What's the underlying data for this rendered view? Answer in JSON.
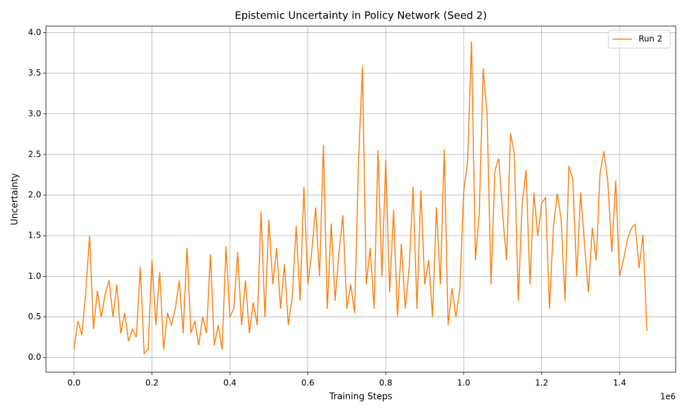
{
  "chart_data": {
    "type": "line",
    "title": "Epistemic Uncertainty in Policy Network (Seed 2)",
    "x_label": "Training Steps",
    "y_label": "Uncertainty",
    "x_offset_label": "1e6",
    "xlim": [
      -72000,
      1544000
    ],
    "ylim": [
      -0.18,
      4.08
    ],
    "xticks": [
      {
        "value": 0,
        "label": "0.0"
      },
      {
        "value": 200000,
        "label": "0.2"
      },
      {
        "value": 400000,
        "label": "0.4"
      },
      {
        "value": 600000,
        "label": "0.6"
      },
      {
        "value": 800000,
        "label": "0.8"
      },
      {
        "value": 1000000,
        "label": "1.0"
      },
      {
        "value": 1200000,
        "label": "1.2"
      },
      {
        "value": 1400000,
        "label": "1.4"
      }
    ],
    "yticks": [
      {
        "value": 0,
        "label": "0.0"
      },
      {
        "value": 0.5,
        "label": "0.5"
      },
      {
        "value": 1,
        "label": "1.0"
      },
      {
        "value": 1.5,
        "label": "1.5"
      },
      {
        "value": 2,
        "label": "2.0"
      },
      {
        "value": 2.5,
        "label": "2.5"
      },
      {
        "value": 3,
        "label": "3.0"
      },
      {
        "value": 3.5,
        "label": "3.5"
      },
      {
        "value": 4,
        "label": "4.0"
      }
    ],
    "grid": true,
    "legend": "upper right",
    "x": [
      0,
      10000,
      20000,
      30000,
      40000,
      50000,
      60000,
      70000,
      80000,
      90000,
      100000,
      110000,
      120000,
      130000,
      140000,
      150000,
      160000,
      170000,
      180000,
      190000,
      200000,
      210000,
      220000,
      230000,
      240000,
      250000,
      260000,
      270000,
      280000,
      290000,
      300000,
      310000,
      320000,
      330000,
      340000,
      350000,
      360000,
      370000,
      380000,
      390000,
      400000,
      410000,
      420000,
      430000,
      440000,
      450000,
      460000,
      470000,
      480000,
      490000,
      500000,
      510000,
      520000,
      530000,
      540000,
      550000,
      560000,
      570000,
      580000,
      590000,
      600000,
      610000,
      620000,
      630000,
      640000,
      650000,
      660000,
      670000,
      680000,
      690000,
      700000,
      710000,
      720000,
      730000,
      740000,
      750000,
      760000,
      770000,
      780000,
      790000,
      800000,
      810000,
      820000,
      830000,
      840000,
      850000,
      860000,
      870000,
      880000,
      890000,
      900000,
      910000,
      920000,
      930000,
      940000,
      950000,
      960000,
      970000,
      980000,
      990000,
      1000000,
      1010000,
      1020000,
      1030000,
      1040000,
      1050000,
      1060000,
      1070000,
      1080000,
      1090000,
      1100000,
      1110000,
      1120000,
      1130000,
      1140000,
      1150000,
      1160000,
      1170000,
      1180000,
      1190000,
      1200000,
      1210000,
      1220000,
      1230000,
      1240000,
      1250000,
      1260000,
      1270000,
      1280000,
      1290000,
      1300000,
      1310000,
      1320000,
      1330000,
      1340000,
      1350000,
      1360000,
      1370000,
      1380000,
      1390000,
      1400000,
      1410000,
      1420000,
      1430000,
      1440000,
      1450000,
      1460000,
      1470000
    ],
    "series": [
      {
        "name": "Run 2",
        "color": "#ff7f0e",
        "values": [
          0.1,
          0.45,
          0.28,
          0.8,
          1.5,
          0.35,
          0.82,
          0.5,
          0.78,
          0.95,
          0.5,
          0.9,
          0.3,
          0.55,
          0.2,
          0.35,
          0.25,
          1.12,
          0.05,
          0.1,
          1.2,
          0.4,
          1.05,
          0.1,
          0.55,
          0.4,
          0.6,
          0.95,
          0.3,
          1.35,
          0.3,
          0.45,
          0.15,
          0.5,
          0.3,
          1.27,
          0.15,
          0.4,
          0.1,
          1.37,
          0.5,
          0.6,
          1.3,
          0.4,
          0.95,
          0.3,
          0.68,
          0.4,
          1.8,
          0.5,
          1.7,
          0.9,
          1.35,
          0.6,
          1.15,
          0.4,
          0.75,
          1.62,
          0.7,
          2.1,
          0.9,
          1.3,
          1.85,
          1.0,
          2.62,
          0.6,
          1.65,
          0.7,
          1.3,
          1.75,
          0.6,
          0.9,
          0.55,
          2.4,
          3.58,
          0.9,
          1.35,
          0.6,
          2.55,
          1.0,
          2.43,
          0.8,
          1.82,
          0.5,
          1.4,
          0.6,
          1.1,
          2.1,
          0.6,
          2.06,
          0.9,
          1.2,
          0.5,
          1.85,
          0.9,
          2.56,
          0.4,
          0.85,
          0.5,
          0.85,
          2.04,
          2.42,
          3.89,
          1.2,
          1.78,
          3.56,
          2.99,
          0.9,
          2.3,
          2.45,
          1.75,
          1.2,
          2.76,
          2.51,
          0.7,
          1.9,
          2.31,
          0.9,
          2.03,
          1.5,
          1.9,
          1.97,
          0.6,
          1.6,
          2.02,
          1.7,
          0.7,
          2.36,
          2.19,
          1.0,
          2.03,
          1.4,
          0.8,
          1.6,
          1.2,
          2.28,
          2.54,
          2.15,
          1.3,
          2.18,
          1.0,
          1.2,
          1.45,
          1.59,
          1.64,
          1.1,
          1.51,
          0.33
        ]
      }
    ]
  }
}
